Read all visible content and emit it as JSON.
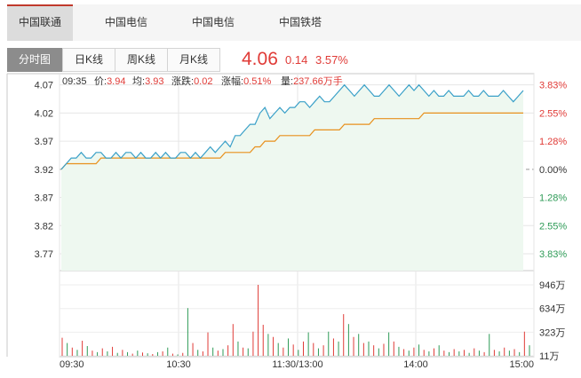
{
  "stock_tabs": [
    {
      "label": "中国联通",
      "active": true
    },
    {
      "label": "中国电信",
      "active": false
    },
    {
      "label": "中国电信",
      "active": false
    },
    {
      "label": "中国铁塔",
      "active": false
    }
  ],
  "period_tabs": [
    {
      "label": "分时图",
      "active": true
    },
    {
      "label": "日K线",
      "active": false
    },
    {
      "label": "周K线",
      "active": false
    },
    {
      "label": "月K线",
      "active": false
    }
  ],
  "quote": {
    "price": "4.06",
    "change": "0.14",
    "change_pct": "3.57%"
  },
  "info_bar": {
    "time": "09:35",
    "price_label": "价:",
    "price": "3.94",
    "avg_label": "均:",
    "avg": "3.93",
    "chg_label": "涨跌:",
    "chg": "0.02",
    "chg_pct_label": "涨幅:",
    "chg_pct": "0.51%",
    "vol_label": "量:",
    "vol": "237.66万手"
  },
  "colors": {
    "up": "#e03b37",
    "down": "#2e9b57",
    "price_line": "#3aa0c8",
    "avg_line": "#e8901c",
    "area_fill": "#eef8f0"
  },
  "chart_data": {
    "type": "line",
    "title": "",
    "prev_close": 3.92,
    "price_ylim": [
      3.74,
      4.09
    ],
    "price_ticks": [
      "4.07",
      "4.02",
      "3.97",
      "3.92",
      "3.87",
      "3.82",
      "3.77"
    ],
    "pct_ticks": [
      "3.83%",
      "2.55%",
      "1.28%",
      "0.00%",
      "1.28%",
      "2.55%",
      "3.83%"
    ],
    "x_tick_labels": [
      "09:30",
      "10:30",
      "11:30/13:00",
      "14:00",
      "15:00"
    ],
    "volume_ticks": [
      "946万",
      "634万",
      "323万",
      "11万"
    ],
    "grid": true,
    "series": [
      {
        "role": "price",
        "values": [
          3.92,
          3.93,
          3.94,
          3.94,
          3.95,
          3.94,
          3.94,
          3.95,
          3.95,
          3.94,
          3.94,
          3.95,
          3.94,
          3.95,
          3.95,
          3.94,
          3.95,
          3.94,
          3.94,
          3.95,
          3.94,
          3.95,
          3.94,
          3.94,
          3.95,
          3.95,
          3.94,
          3.95,
          3.94,
          3.95,
          3.96,
          3.95,
          3.96,
          3.97,
          3.96,
          3.98,
          3.98,
          3.99,
          4.0,
          4.0,
          4.02,
          4.03,
          4.01,
          4.02,
          4.03,
          4.02,
          4.03,
          4.03,
          4.04,
          4.04,
          4.03,
          4.04,
          4.05,
          4.04,
          4.04,
          4.05,
          4.06,
          4.07,
          4.06,
          4.05,
          4.06,
          4.07,
          4.06,
          4.05,
          4.05,
          4.06,
          4.07,
          4.06,
          4.05,
          4.06,
          4.07,
          4.06,
          4.07,
          4.06,
          4.05,
          4.06,
          4.05,
          4.05,
          4.06,
          4.05,
          4.05,
          4.05,
          4.06,
          4.05,
          4.05,
          4.06,
          4.05,
          4.05,
          4.05,
          4.06,
          4.05,
          4.04,
          4.05,
          4.06
        ]
      },
      {
        "role": "avg",
        "values": [
          3.92,
          3.93,
          3.93,
          3.93,
          3.93,
          3.93,
          3.93,
          3.93,
          3.94,
          3.94,
          3.94,
          3.94,
          3.94,
          3.94,
          3.94,
          3.94,
          3.94,
          3.94,
          3.94,
          3.94,
          3.94,
          3.94,
          3.94,
          3.94,
          3.94,
          3.94,
          3.94,
          3.94,
          3.94,
          3.94,
          3.94,
          3.94,
          3.94,
          3.95,
          3.95,
          3.95,
          3.95,
          3.95,
          3.95,
          3.96,
          3.96,
          3.97,
          3.97,
          3.97,
          3.98,
          3.98,
          3.98,
          3.98,
          3.98,
          3.98,
          3.98,
          3.99,
          3.99,
          3.99,
          3.99,
          3.99,
          3.99,
          4.0,
          4.0,
          4.0,
          4.0,
          4.0,
          4.0,
          4.01,
          4.01,
          4.01,
          4.01,
          4.01,
          4.01,
          4.01,
          4.01,
          4.01,
          4.01,
          4.02,
          4.02,
          4.02,
          4.02,
          4.02,
          4.02,
          4.02,
          4.02,
          4.02,
          4.02,
          4.02,
          4.02,
          4.02,
          4.02,
          4.02,
          4.02,
          4.02,
          4.02,
          4.02,
          4.02,
          4.02
        ]
      }
    ],
    "volume": [
      {
        "v": 250,
        "up": true
      },
      {
        "v": 180,
        "up": false
      },
      {
        "v": 120,
        "up": true
      },
      {
        "v": 90,
        "up": false
      },
      {
        "v": 210,
        "up": true
      },
      {
        "v": 140,
        "up": false
      },
      {
        "v": 80,
        "up": true
      },
      {
        "v": 60,
        "up": false
      },
      {
        "v": 110,
        "up": true
      },
      {
        "v": 70,
        "up": false
      },
      {
        "v": 130,
        "up": true
      },
      {
        "v": 50,
        "up": false
      },
      {
        "v": 90,
        "up": true
      },
      {
        "v": 60,
        "up": false
      },
      {
        "v": 40,
        "up": true
      },
      {
        "v": 80,
        "up": false
      },
      {
        "v": 55,
        "up": true
      },
      {
        "v": 45,
        "up": false
      },
      {
        "v": 35,
        "up": true
      },
      {
        "v": 60,
        "up": false
      },
      {
        "v": 70,
        "up": true
      },
      {
        "v": 120,
        "up": false
      },
      {
        "v": 40,
        "up": true
      },
      {
        "v": 30,
        "up": false
      },
      {
        "v": 50,
        "up": true
      },
      {
        "v": 640,
        "up": false
      },
      {
        "v": 180,
        "up": true
      },
      {
        "v": 90,
        "up": false
      },
      {
        "v": 70,
        "up": true
      },
      {
        "v": 320,
        "up": true
      },
      {
        "v": 120,
        "up": false
      },
      {
        "v": 80,
        "up": true
      },
      {
        "v": 100,
        "up": false
      },
      {
        "v": 150,
        "up": true
      },
      {
        "v": 430,
        "up": true
      },
      {
        "v": 200,
        "up": false
      },
      {
        "v": 120,
        "up": true
      },
      {
        "v": 110,
        "up": false
      },
      {
        "v": 330,
        "up": true
      },
      {
        "v": 946,
        "up": true
      },
      {
        "v": 420,
        "up": true
      },
      {
        "v": 300,
        "up": false
      },
      {
        "v": 260,
        "up": true
      },
      {
        "v": 180,
        "up": false
      },
      {
        "v": 120,
        "up": true
      },
      {
        "v": 240,
        "up": false
      },
      {
        "v": 160,
        "up": true
      },
      {
        "v": 90,
        "up": false
      },
      {
        "v": 200,
        "up": true
      },
      {
        "v": 320,
        "up": false
      },
      {
        "v": 180,
        "up": true
      },
      {
        "v": 110,
        "up": false
      },
      {
        "v": 150,
        "up": true
      },
      {
        "v": 330,
        "up": false
      },
      {
        "v": 240,
        "up": true
      },
      {
        "v": 200,
        "up": false
      },
      {
        "v": 560,
        "up": true
      },
      {
        "v": 430,
        "up": false
      },
      {
        "v": 260,
        "up": true
      },
      {
        "v": 300,
        "up": false
      },
      {
        "v": 180,
        "up": true
      },
      {
        "v": 200,
        "up": false
      },
      {
        "v": 150,
        "up": true
      },
      {
        "v": 110,
        "up": false
      },
      {
        "v": 170,
        "up": true
      },
      {
        "v": 320,
        "up": false
      },
      {
        "v": 200,
        "up": true
      },
      {
        "v": 130,
        "up": false
      },
      {
        "v": 100,
        "up": true
      },
      {
        "v": 80,
        "up": false
      },
      {
        "v": 120,
        "up": true
      },
      {
        "v": 160,
        "up": false
      },
      {
        "v": 90,
        "up": true
      },
      {
        "v": 70,
        "up": false
      },
      {
        "v": 110,
        "up": true
      },
      {
        "v": 150,
        "up": false
      },
      {
        "v": 80,
        "up": true
      },
      {
        "v": 60,
        "up": false
      },
      {
        "v": 100,
        "up": true
      },
      {
        "v": 70,
        "up": false
      },
      {
        "v": 90,
        "up": true
      },
      {
        "v": 50,
        "up": false
      },
      {
        "v": 110,
        "up": true
      },
      {
        "v": 80,
        "up": false
      },
      {
        "v": 60,
        "up": true
      },
      {
        "v": 300,
        "up": false
      },
      {
        "v": 90,
        "up": true
      },
      {
        "v": 70,
        "up": false
      },
      {
        "v": 120,
        "up": true
      },
      {
        "v": 80,
        "up": false
      },
      {
        "v": 100,
        "up": true
      },
      {
        "v": 60,
        "up": false
      },
      {
        "v": 330,
        "up": true
      },
      {
        "v": 150,
        "up": false
      }
    ]
  }
}
